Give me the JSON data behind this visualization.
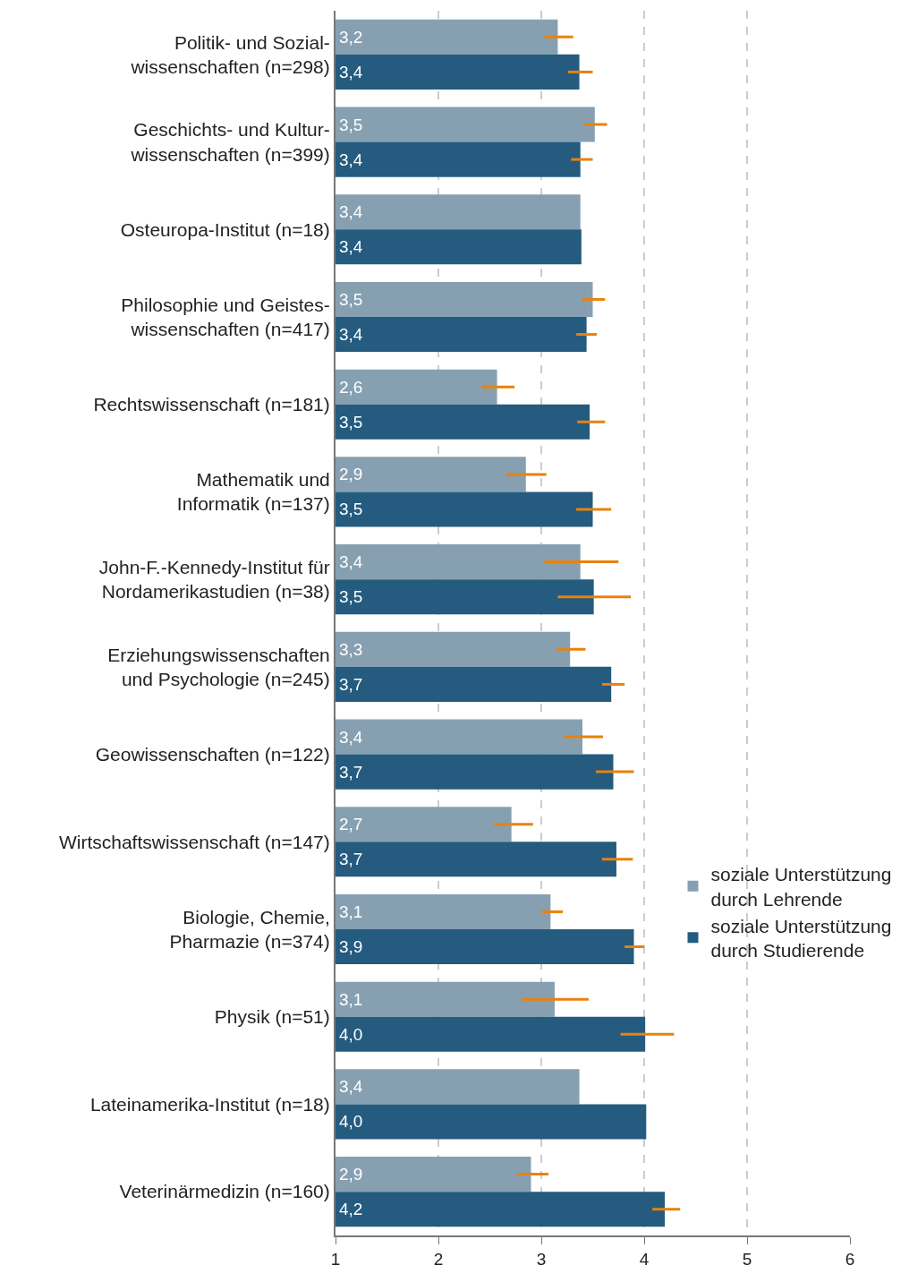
{
  "chart_data": {
    "type": "bar",
    "orientation": "horizontal",
    "categories": [
      "Politik- und Sozial-\nwissenschaften (n=298)",
      "Geschichts- und Kultur-\nwissenschaften (n=399)",
      "Osteuropa-Institut (n=18)",
      "Philosophie und Geistes-\nwissenschaften (n=417)",
      "Rechtswissenschaft (n=181)",
      "Mathematik und\nInformatik (n=137)",
      "John-F.-Kennedy-Institut für\nNordamerikastudien (n=38)",
      "Erziehungswissenschaften\nund Psychologie (n=245)",
      "Geowissenschaften (n=122)",
      "Wirtschaftswissenschaft (n=147)",
      "Biologie, Chemie,\nPharmazie (n=374)",
      "Physik (n=51)",
      "Lateinamerika-Institut (n=18)",
      "Veterinärmedizin (n=160)"
    ],
    "series": [
      {
        "name": "soziale Unterstützung\ndurch Lehrende",
        "color": "#86a0b2",
        "values": [
          3.16,
          3.52,
          3.38,
          3.5,
          2.57,
          2.85,
          3.38,
          3.28,
          3.4,
          2.71,
          3.09,
          3.13,
          3.37,
          2.9
        ],
        "value_labels": [
          "3,2",
          "3,5",
          "3,4",
          "3,5",
          "2,6",
          "2,9",
          "3,4",
          "3,3",
          "3,4",
          "2,7",
          "3,1",
          "3,1",
          "3,4",
          "2,9"
        ],
        "errors": [
          [
            3.03,
            3.31
          ],
          [
            3.42,
            3.64
          ],
          null,
          [
            3.4,
            3.62
          ],
          [
            2.42,
            2.74
          ],
          [
            2.66,
            3.05
          ],
          [
            3.03,
            3.75
          ],
          [
            3.15,
            3.43
          ],
          [
            3.22,
            3.6
          ],
          [
            2.54,
            2.92
          ],
          [
            3.0,
            3.21
          ],
          [
            2.81,
            3.46
          ],
          null,
          [
            2.76,
            3.07
          ]
        ]
      },
      {
        "name": "soziale Unterstützung\ndurch Studierende",
        "color": "#245b7e",
        "values": [
          3.37,
          3.38,
          3.39,
          3.44,
          3.47,
          3.5,
          3.51,
          3.68,
          3.7,
          3.73,
          3.9,
          4.01,
          4.02,
          4.2
        ],
        "value_labels": [
          "3,4",
          "3,4",
          "3,4",
          "3,4",
          "3,5",
          "3,5",
          "3,5",
          "3,7",
          "3,7",
          "3,7",
          "3,9",
          "4,0",
          "4,0",
          "4,2"
        ],
        "errors": [
          [
            3.26,
            3.5
          ],
          [
            3.29,
            3.5
          ],
          null,
          [
            3.34,
            3.54
          ],
          [
            3.35,
            3.62
          ],
          [
            3.34,
            3.68
          ],
          [
            3.16,
            3.87
          ],
          [
            3.59,
            3.81
          ],
          [
            3.53,
            3.9
          ],
          [
            3.59,
            3.89
          ],
          [
            3.81,
            4.0
          ],
          [
            3.77,
            4.29
          ],
          null,
          [
            4.08,
            4.35
          ]
        ]
      }
    ],
    "xlim": [
      1,
      6
    ],
    "xticks": [
      1,
      2,
      3,
      4,
      5,
      6
    ],
    "grid": "x",
    "legend": "right"
  }
}
